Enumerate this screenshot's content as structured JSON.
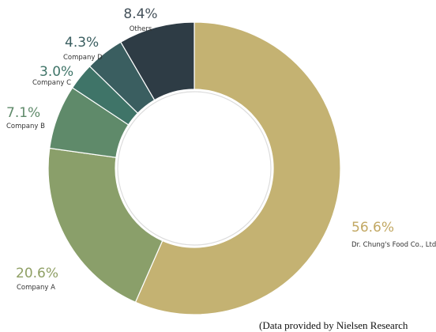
{
  "chart_data": {
    "type": "donut",
    "series": [
      {
        "label": "Dr. Chung's Food Co., Ltd",
        "value": 56.6,
        "display": "56.6%",
        "color": "#c4b272"
      },
      {
        "label": "Company A",
        "value": 20.6,
        "display": "20.6%",
        "color": "#8a9f6a"
      },
      {
        "label": "Company B",
        "value": 7.1,
        "display": "7.1%",
        "color": "#5f8a6a"
      },
      {
        "label": "Company C",
        "value": 3.0,
        "display": "3.0%",
        "color": "#3f7468"
      },
      {
        "label": "Company D",
        "value": 4.3,
        "display": "4.3%",
        "color": "#3a5e60"
      },
      {
        "label": "Others",
        "value": 8.4,
        "display": "8.4%",
        "color": "#2e3c45"
      }
    ],
    "percent_colors": [
      "#c2a863",
      "#8f9f64",
      "#5f8a6a",
      "#3f7468",
      "#3a5e60",
      "#44515a"
    ]
  },
  "source_note": "(Data provided by Nielsen Research"
}
